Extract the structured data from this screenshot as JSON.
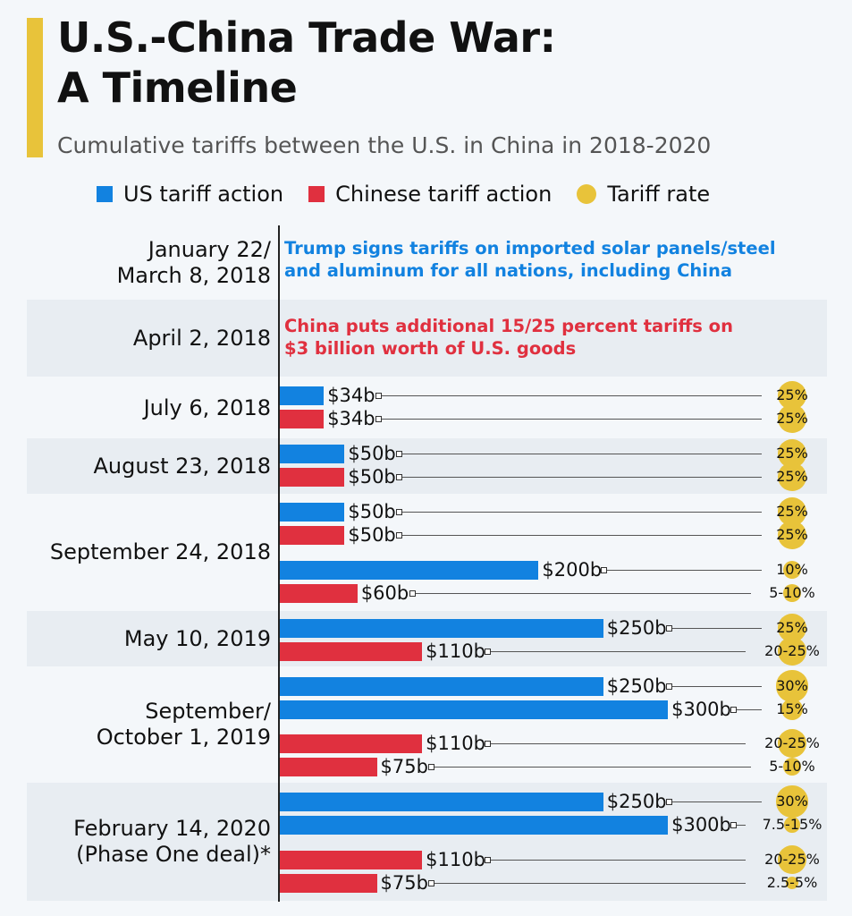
{
  "title_line1": "U.S.-China Trade War:",
  "title_line2": "A Timeline",
  "subtitle": "Cumulative tariffs between the U.S. in China in 2018-2020",
  "legend": [
    {
      "label": "US tariff action",
      "color": "#1282e0",
      "shape": "square"
    },
    {
      "label": "Chinese tariff action",
      "color": "#e0303f",
      "shape": "square"
    },
    {
      "label": "Tariff rate",
      "color": "#e8c33a",
      "shape": "circle"
    }
  ],
  "colors": {
    "us": "#1282e0",
    "china": "#e0303f",
    "rate": "#e8c33a",
    "band": "#e8edf2"
  },
  "chart_data": {
    "type": "bar",
    "orientation": "horizontal",
    "unit": "billion USD",
    "sections": [
      {
        "date": "January 22/\nMarch 8, 2018",
        "note": "Trump signs tariffs on imported solar panels/steel\nand aluminum for all nations, including China",
        "note_side": "us",
        "bars": []
      },
      {
        "date": "April 2, 2018",
        "note": "China puts additional 15/25 percent tariffs on\n$3 billion worth of U.S. goods",
        "note_side": "china",
        "bars": []
      },
      {
        "date": "July 6, 2018",
        "bars": [
          {
            "side": "us",
            "value": 34,
            "label": "$34b",
            "rate": "25%",
            "rate_value": 25
          },
          {
            "side": "china",
            "value": 34,
            "label": "$34b",
            "rate": "25%",
            "rate_value": 25
          }
        ]
      },
      {
        "date": "August 23, 2018",
        "bars": [
          {
            "side": "us",
            "value": 50,
            "label": "$50b",
            "rate": "25%",
            "rate_value": 25
          },
          {
            "side": "china",
            "value": 50,
            "label": "$50b",
            "rate": "25%",
            "rate_value": 25
          }
        ]
      },
      {
        "date": "September 24, 2018",
        "bars": [
          {
            "side": "us",
            "value": 50,
            "label": "$50b",
            "rate": "25%",
            "rate_value": 25
          },
          {
            "side": "china",
            "value": 50,
            "label": "$50b",
            "rate": "25%",
            "rate_value": 25
          },
          {
            "side": "us",
            "value": 200,
            "label": "$200b",
            "rate": "10%",
            "rate_value": 10
          },
          {
            "side": "china",
            "value": 60,
            "label": "$60b",
            "rate": "5-10%",
            "rate_value": 10
          }
        ]
      },
      {
        "date": "May 10, 2019",
        "bars": [
          {
            "side": "us",
            "value": 250,
            "label": "$250b",
            "rate": "25%",
            "rate_value": 25
          },
          {
            "side": "china",
            "value": 110,
            "label": "$110b",
            "rate": "20-25%",
            "rate_value": 25
          }
        ]
      },
      {
        "date": "September/\nOctober 1, 2019",
        "bars": [
          {
            "side": "us",
            "value": 250,
            "label": "$250b",
            "rate": "30%",
            "rate_value": 30
          },
          {
            "side": "us",
            "value": 300,
            "label": "$300b",
            "rate": "15%",
            "rate_value": 15
          },
          {
            "side": "china",
            "value": 110,
            "label": "$110b",
            "rate": "20-25%",
            "rate_value": 25
          },
          {
            "side": "china",
            "value": 75,
            "label": "$75b",
            "rate": "5-10%",
            "rate_value": 10
          }
        ]
      },
      {
        "date": "February 14, 2020\n(Phase One deal)*",
        "bars": [
          {
            "side": "us",
            "value": 250,
            "label": "$250b",
            "rate": "30%",
            "rate_value": 30
          },
          {
            "side": "us",
            "value": 300,
            "label": "$300b",
            "rate": "7.5-15%",
            "rate_value": 7.5
          },
          {
            "side": "china",
            "value": 110,
            "label": "$110b",
            "rate": "20-25%",
            "rate_value": 25
          },
          {
            "side": "china",
            "value": 75,
            "label": "$75b",
            "rate": "2.5-5%",
            "rate_value": 5
          }
        ]
      }
    ]
  }
}
